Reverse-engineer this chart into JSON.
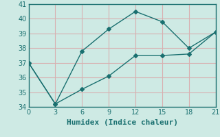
{
  "x": [
    0,
    3,
    6,
    9,
    12,
    15,
    18,
    21
  ],
  "line1_y": [
    37.0,
    34.2,
    37.8,
    39.3,
    40.5,
    39.8,
    38.0,
    39.1
  ],
  "line2_y": [
    37.0,
    34.2,
    35.2,
    36.1,
    37.5,
    37.5,
    37.6,
    39.1
  ],
  "line_color": "#1a7070",
  "marker": "D",
  "marker_size": 3,
  "xlabel": "Humidex (Indice chaleur)",
  "xlim": [
    0,
    21
  ],
  "ylim": [
    34,
    41
  ],
  "yticks": [
    34,
    35,
    36,
    37,
    38,
    39,
    40,
    41
  ],
  "xticks": [
    0,
    3,
    6,
    9,
    12,
    15,
    18,
    21
  ],
  "bg_color": "#ceeae4",
  "grid_color": "#d8b0b0",
  "xlabel_fontsize": 8,
  "tick_fontsize": 7
}
